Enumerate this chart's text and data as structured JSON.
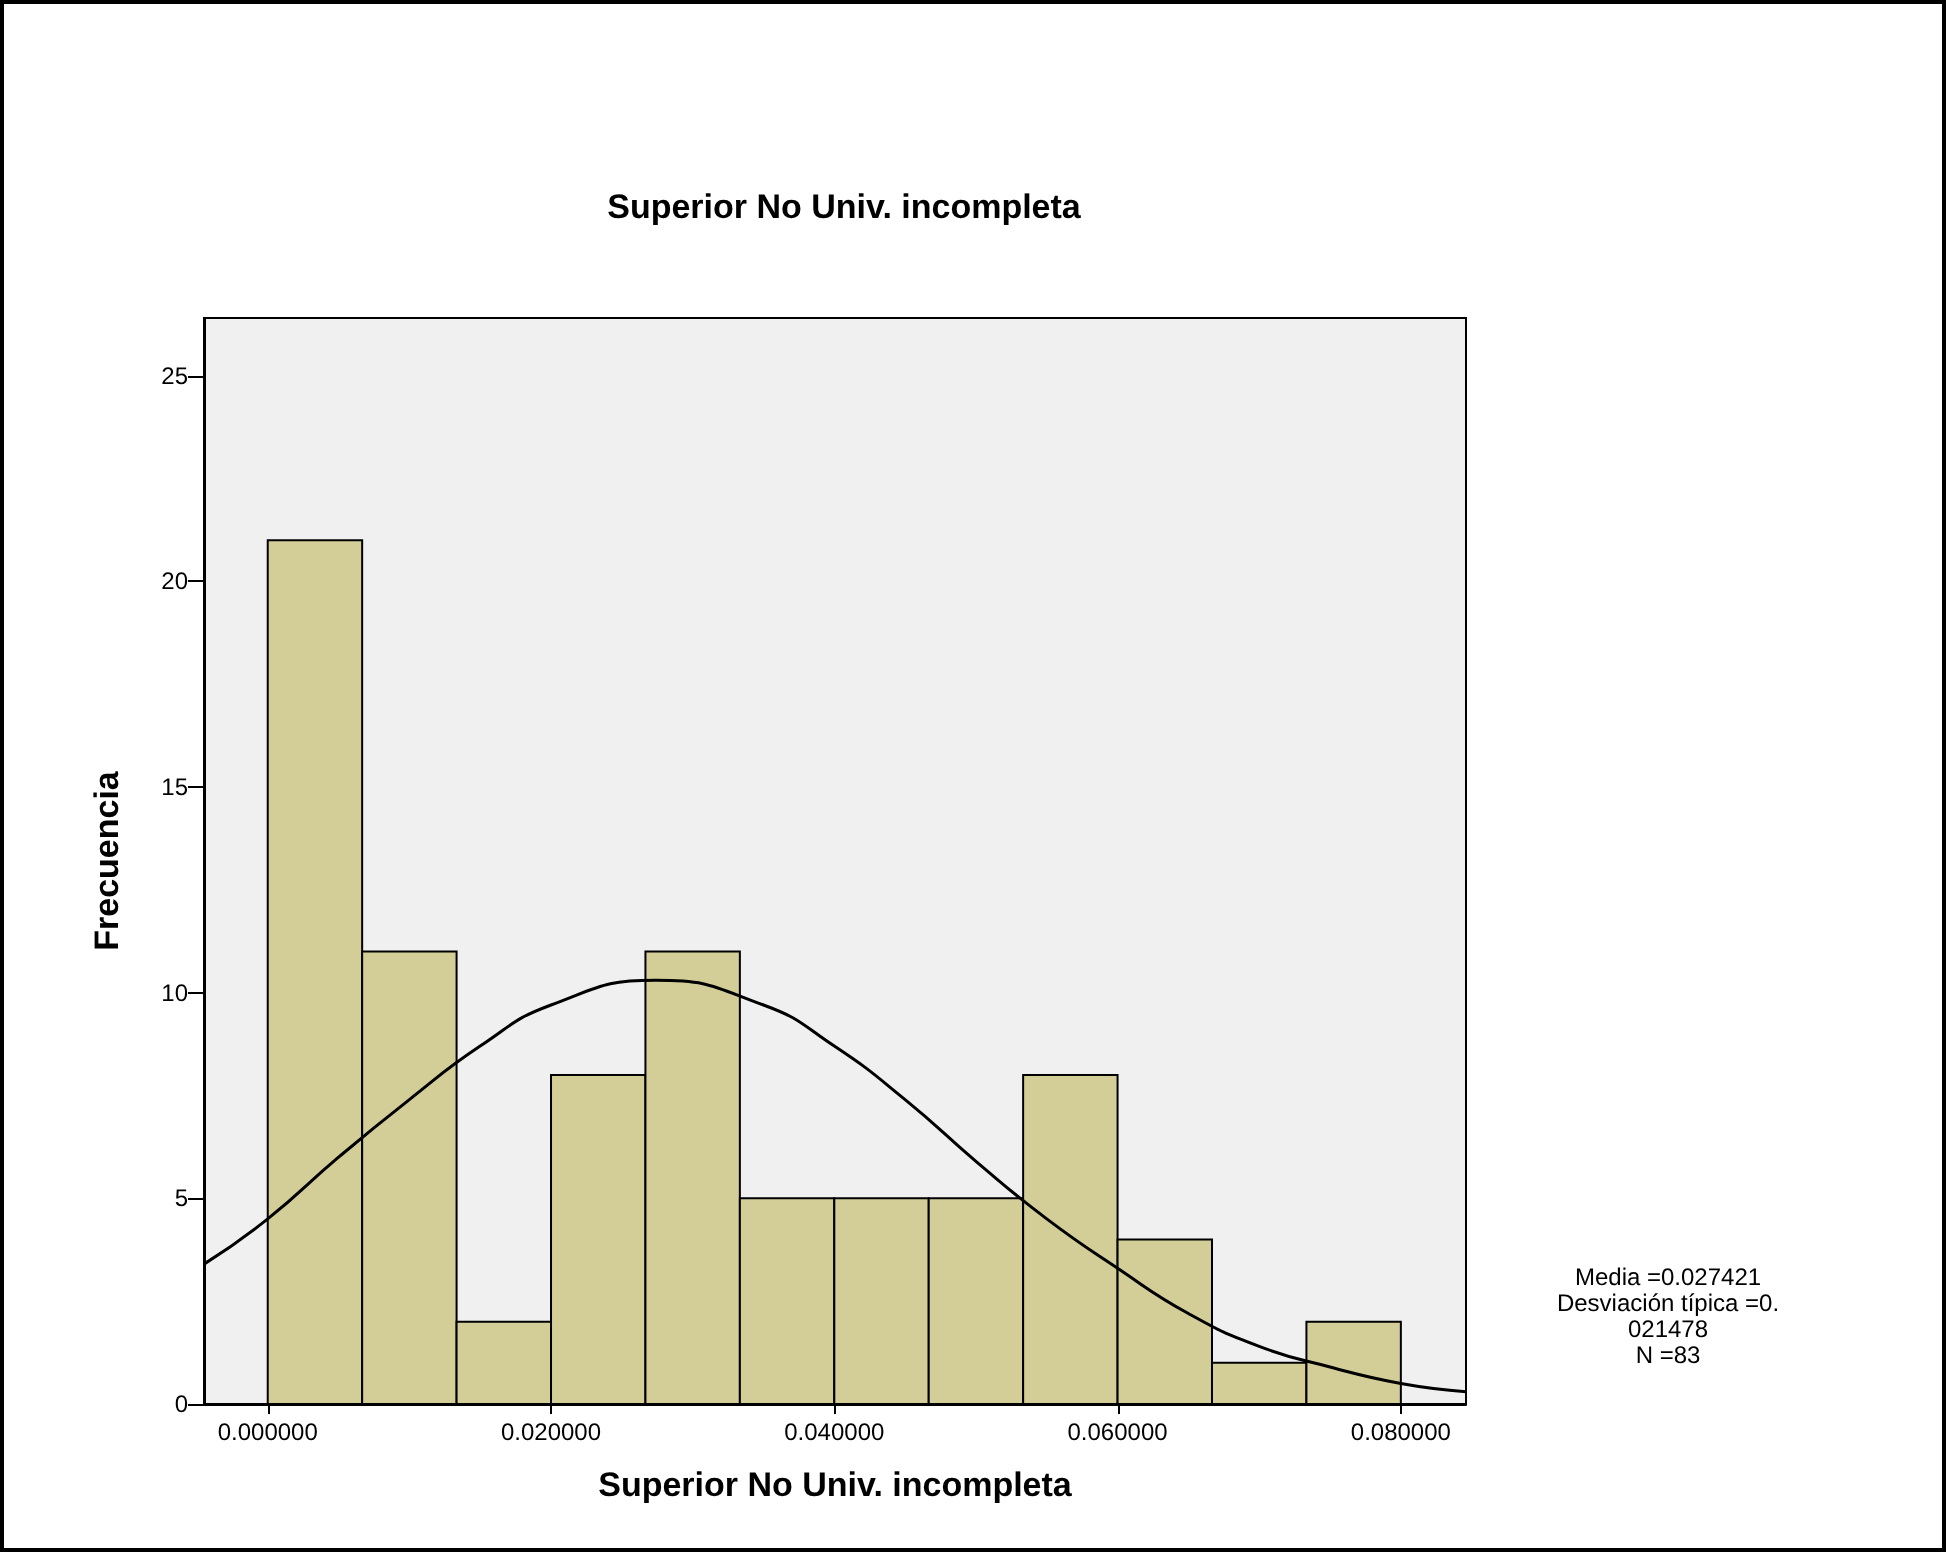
{
  "chart_data": {
    "type": "histogram",
    "title": "Superior No Univ. incompleta",
    "xlabel": "Superior No Univ. incompleta",
    "ylabel": "Frecuencia",
    "bins": [
      0,
      0.0066667,
      0.0133333,
      0.02,
      0.0266667,
      0.0333333,
      0.04,
      0.0466667,
      0.0533333,
      0.06,
      0.0666667,
      0.0733333,
      0.08
    ],
    "values": [
      21,
      11,
      2,
      8,
      11,
      5,
      5,
      5,
      8,
      4,
      1,
      2
    ],
    "color": "#d3ce97",
    "series": [
      {
        "type": "line",
        "color": "#000000",
        "x": [
          -0.0045,
          0,
          0.005,
          0.01,
          0.015,
          0.02,
          0.0274,
          0.035,
          0.04,
          0.045,
          0.05,
          0.055,
          0.06,
          0.065,
          0.07,
          0.075,
          0.08,
          0.0846
        ],
        "values": [
          3.4,
          4.5,
          6.0,
          7.4,
          8.7,
          9.7,
          10.3,
          9.7,
          8.7,
          7.4,
          5.9,
          4.5,
          3.3,
          2.2,
          1.4,
          0.9,
          0.5,
          0.3
        ]
      }
    ],
    "xlim": [
      -0.0045,
      0.0846
    ],
    "xticks": [
      {
        "value": 0,
        "label": "0.000000"
      },
      {
        "value": 0.02,
        "label": "0.020000"
      },
      {
        "value": 0.04,
        "label": "0.040000"
      },
      {
        "value": 0.06,
        "label": "0.060000"
      },
      {
        "value": 0.08,
        "label": "0.080000"
      }
    ],
    "ylim": [
      0,
      26.4
    ],
    "yticks": [
      0,
      5,
      10,
      15,
      20,
      25
    ],
    "grid": false,
    "annotations": [
      "Media =0.027421",
      "Desviación típica =0.",
      "021478",
      "N =83"
    ]
  }
}
